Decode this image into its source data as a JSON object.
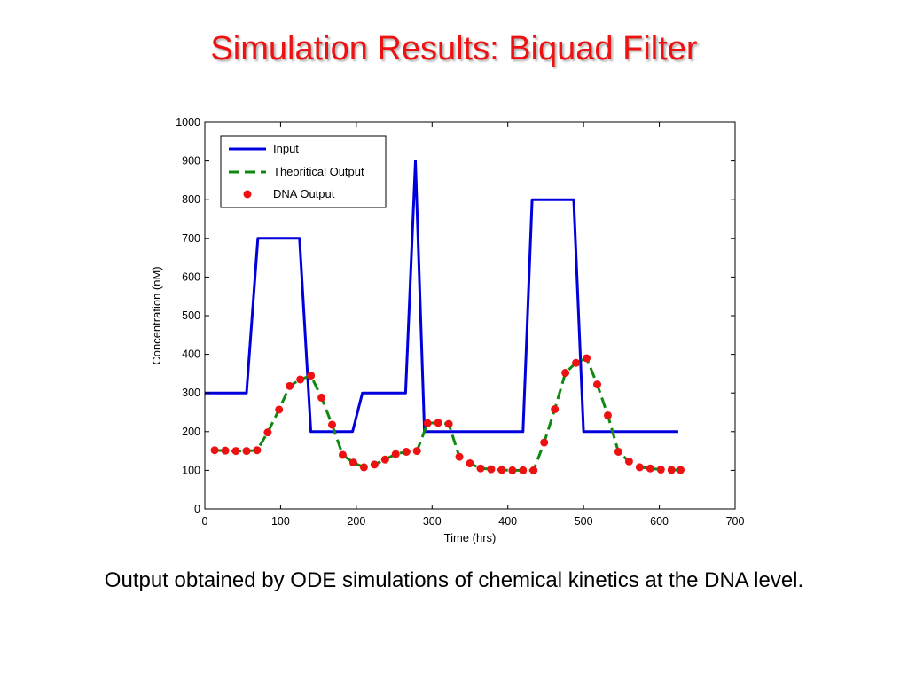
{
  "slide": {
    "title": "Simulation Results: Biquad Filter",
    "caption": "Output obtained by ODE simulations of chemical kinetics at the DNA level."
  },
  "colors": {
    "title": "#ee1111",
    "input": "#0000dd",
    "theoretical": "#118811",
    "dna": "#ee1111"
  },
  "chart_data": {
    "type": "line",
    "title": "",
    "xlabel": "Time (hrs)",
    "ylabel": "Concentration (nM)",
    "xlim": [
      0,
      700
    ],
    "ylim": [
      0,
      1000
    ],
    "xticks": [
      0,
      100,
      200,
      300,
      400,
      500,
      600,
      700
    ],
    "yticks": [
      0,
      100,
      200,
      300,
      400,
      500,
      600,
      700,
      800,
      900,
      1000
    ],
    "legend_position": "top-left",
    "grid": false,
    "series": [
      {
        "name": "Input",
        "style": "solid-line",
        "x": [
          0,
          55,
          70,
          125,
          140,
          195,
          208,
          265,
          278,
          290,
          420,
          432,
          487,
          500,
          625
        ],
        "y": [
          300,
          300,
          700,
          700,
          200,
          200,
          300,
          300,
          900,
          200,
          200,
          800,
          800,
          200,
          200
        ]
      },
      {
        "name": "Theoritical Output",
        "style": "dashed-line",
        "x": [
          13,
          27,
          41,
          55,
          69,
          83,
          98,
          112,
          126,
          140,
          154,
          168,
          182,
          196,
          210,
          224,
          238,
          252,
          266,
          280,
          294,
          308,
          322,
          336,
          350,
          364,
          378,
          392,
          406,
          420,
          434,
          448,
          462,
          476,
          490,
          504,
          518,
          532,
          546,
          560,
          574,
          588,
          602,
          616,
          628
        ],
        "y": [
          152,
          151,
          150,
          150,
          152,
          198,
          257,
          318,
          335,
          345,
          288,
          218,
          140,
          120,
          108,
          115,
          128,
          142,
          148,
          150,
          222,
          223,
          220,
          135,
          118,
          105,
          103,
          101,
          100,
          100,
          100,
          172,
          258,
          352,
          378,
          390,
          322,
          242,
          148,
          123,
          108,
          105,
          102,
          101,
          101
        ]
      },
      {
        "name": "DNA Output",
        "style": "markers",
        "x": [
          13,
          27,
          41,
          55,
          69,
          83,
          98,
          112,
          126,
          140,
          154,
          168,
          182,
          196,
          210,
          224,
          238,
          252,
          266,
          280,
          294,
          308,
          322,
          336,
          350,
          364,
          378,
          392,
          406,
          420,
          434,
          448,
          462,
          476,
          490,
          504,
          518,
          532,
          546,
          560,
          574,
          588,
          602,
          616,
          628
        ],
        "y": [
          152,
          151,
          150,
          150,
          152,
          198,
          257,
          318,
          335,
          345,
          288,
          218,
          140,
          120,
          108,
          115,
          128,
          142,
          148,
          150,
          222,
          223,
          220,
          135,
          118,
          105,
          103,
          101,
          100,
          100,
          100,
          172,
          258,
          352,
          378,
          390,
          322,
          242,
          148,
          123,
          108,
          105,
          102,
          101,
          101
        ]
      }
    ]
  }
}
